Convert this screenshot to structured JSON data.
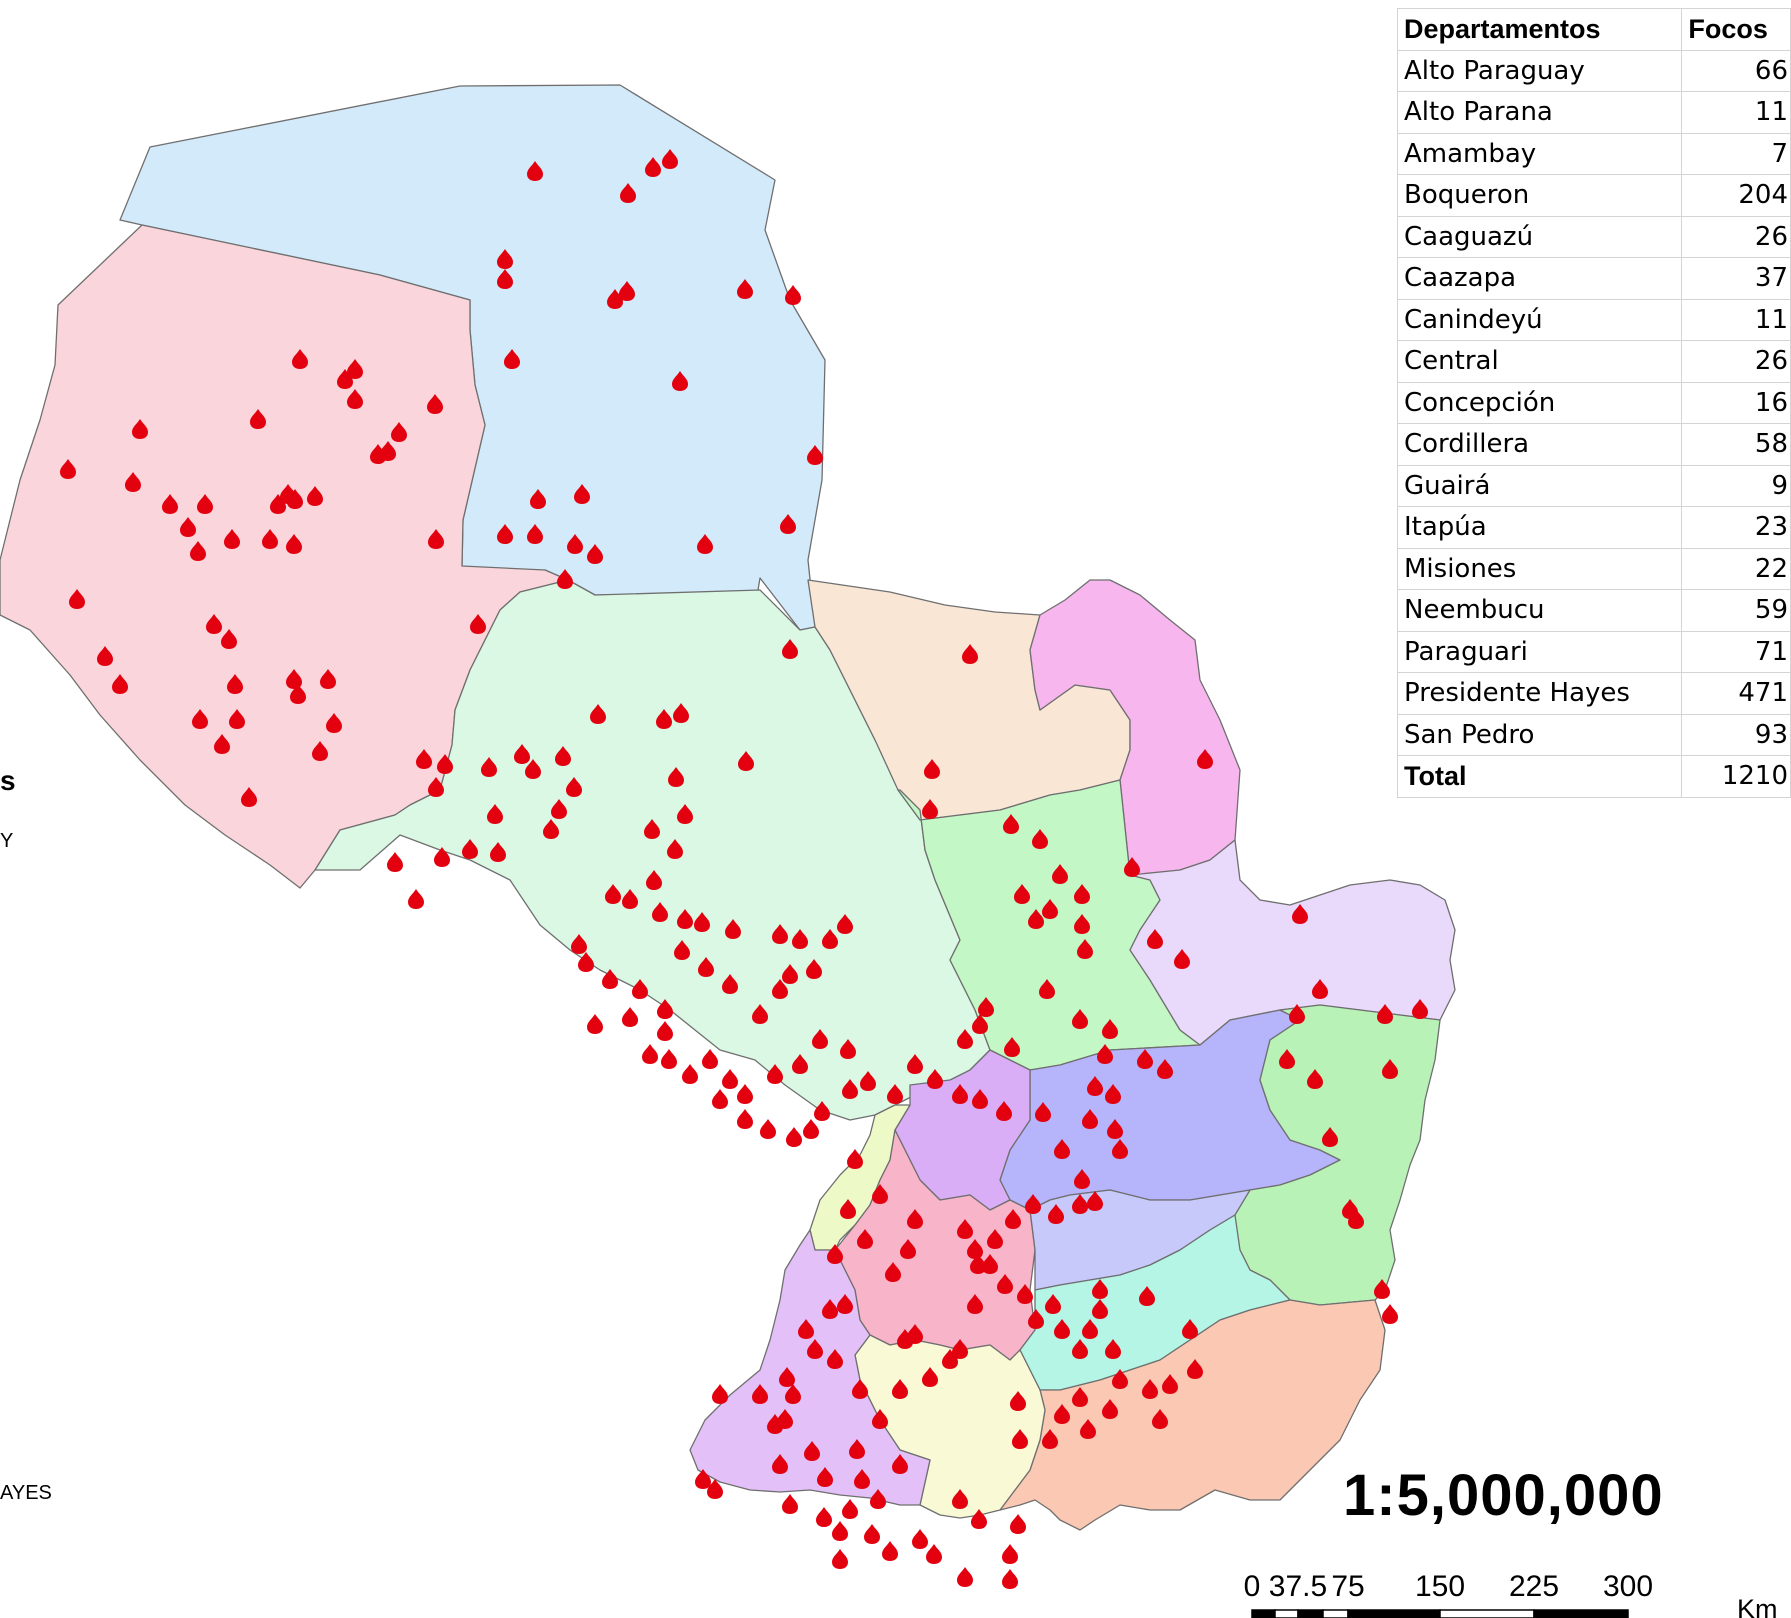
{
  "legend": {
    "title_fragment": "s",
    "subtitle_fragment": "Y",
    "hayes_fragment": "AYES"
  },
  "table": {
    "headers": [
      "Departamentos",
      "Focos"
    ],
    "rows": [
      {
        "name": "Alto Paraguay",
        "value": "66"
      },
      {
        "name": "Alto Parana",
        "value": "11"
      },
      {
        "name": "Amambay",
        "value": "7"
      },
      {
        "name": "Boqueron",
        "value": "204"
      },
      {
        "name": "Caaguazú",
        "value": "26"
      },
      {
        "name": "Caazapa",
        "value": "37"
      },
      {
        "name": "Canindeyú",
        "value": "11"
      },
      {
        "name": "Central",
        "value": "26"
      },
      {
        "name": "Concepción",
        "value": "16"
      },
      {
        "name": "Cordillera",
        "value": "58"
      },
      {
        "name": "Guairá",
        "value": "9"
      },
      {
        "name": "Itapúa",
        "value": "23"
      },
      {
        "name": "Misiones",
        "value": "22"
      },
      {
        "name": "Neembucu",
        "value": "59"
      },
      {
        "name": "Paraguari",
        "value": "71"
      },
      {
        "name": "Presidente Hayes",
        "value": "471"
      },
      {
        "name": "San Pedro",
        "value": "93"
      }
    ],
    "total": {
      "name": "Total",
      "value": "1210"
    }
  },
  "scale": {
    "ratio": "1:5,000,000",
    "ticks": [
      "0",
      "37.5",
      "75",
      "150",
      "225",
      "300"
    ],
    "unit": "Km"
  },
  "colors": {
    "fire": "#e3000f",
    "alto_paraguay": "#d3eafa",
    "boqueron": "#fbd5dc",
    "presidente_hayes": "#daf8e3",
    "concepcion": "#fae6d5",
    "amambay": "#f7b7ee",
    "san_pedro": "#c4f7c6",
    "canindeyu": "#e9d9fb",
    "caaguazu": "#b6b4fa",
    "alto_parana": "#b9f2b7",
    "cordillera": "#d9aef6",
    "central": "#eef9c8",
    "paraguari": "#f8b4c8",
    "guaira": "#c7c9fa",
    "caazapa": "#b4f5e6",
    "itapua": "#fac8b3",
    "misiones": "#f9f9d6",
    "neembucu": "#e3c0f7"
  },
  "icons": {
    "fire_marker": "fire-icon"
  }
}
